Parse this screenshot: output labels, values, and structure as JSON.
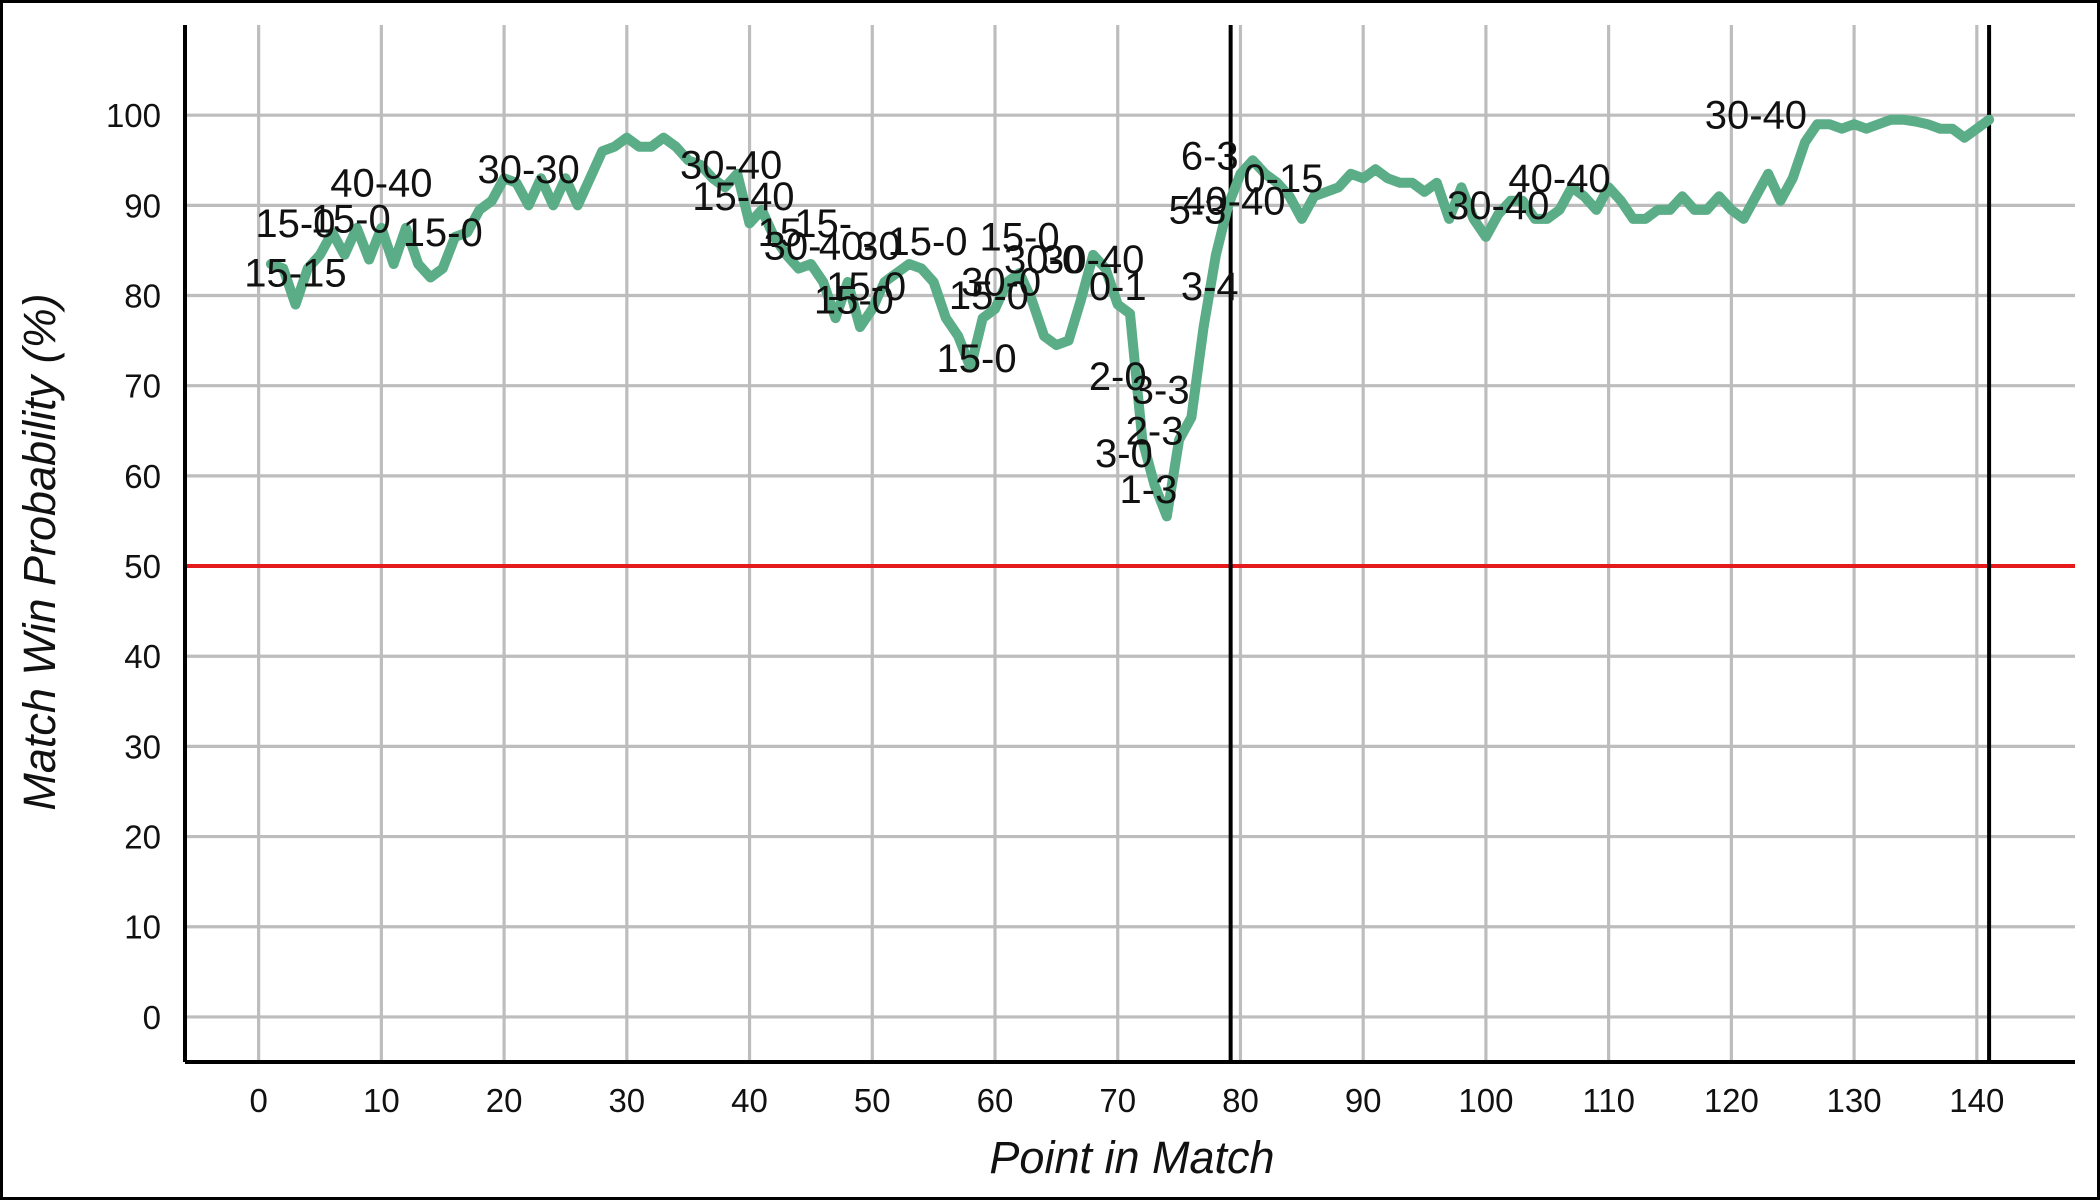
{
  "chart_data": {
    "type": "line",
    "title": "",
    "xlabel": "Point in Match",
    "ylabel": "Match Win Probability (%)",
    "xlim": [
      -6,
      148
    ],
    "ylim": [
      -5,
      110
    ],
    "xticks": [
      0,
      10,
      20,
      30,
      40,
      50,
      60,
      70,
      80,
      90,
      100,
      110,
      120,
      130,
      140
    ],
    "yticks": [
      0,
      10,
      20,
      30,
      40,
      50,
      60,
      70,
      80,
      90,
      100
    ],
    "grid": true,
    "legend": "none",
    "colors": {
      "series": "#5aad86",
      "reference": "#e41a1c",
      "set_boundary": "#000000"
    },
    "reference_line": {
      "y": 50
    },
    "set_boundaries": [
      79.2,
      141
    ],
    "series": [
      {
        "x": [
          1,
          2,
          3,
          4,
          5,
          6,
          7,
          8,
          9,
          10,
          11,
          12,
          13,
          14,
          15,
          16,
          17,
          18,
          19,
          20,
          21,
          22,
          23,
          24,
          25,
          26,
          27,
          28,
          29,
          30,
          31,
          32,
          33,
          34,
          35,
          36,
          37,
          38,
          39,
          40,
          41,
          42,
          43,
          44,
          45,
          46,
          47,
          48,
          49,
          50,
          51,
          52,
          53,
          54,
          55,
          56,
          57,
          58,
          59,
          60,
          61,
          62,
          63,
          64,
          65,
          66,
          67,
          68,
          69,
          70,
          71,
          72,
          73,
          74,
          75,
          76,
          77,
          78,
          79,
          80,
          81,
          82,
          83,
          84,
          85,
          86,
          87,
          88,
          89,
          90,
          91,
          92,
          93,
          94,
          95,
          96,
          97,
          98,
          99,
          100,
          101,
          102,
          103,
          104,
          105,
          106,
          107,
          108,
          109,
          110,
          111,
          112,
          113,
          114,
          115,
          116,
          117,
          118,
          119,
          120,
          121,
          122,
          123,
          124,
          125,
          126,
          127,
          128,
          129,
          130,
          131,
          132,
          133,
          134,
          135,
          136,
          137,
          138,
          139,
          140,
          141
        ],
        "values": [
          83.5,
          83,
          79,
          83,
          84.5,
          87,
          84.5,
          87.5,
          84,
          87.5,
          83.5,
          87.5,
          83.5,
          82,
          83,
          86.5,
          87,
          89.5,
          90.5,
          93,
          92.5,
          90,
          93,
          90,
          93,
          90,
          93,
          96,
          96.5,
          97.5,
          96.5,
          96.5,
          97.5,
          96.5,
          95,
          94.5,
          93,
          92,
          93.5,
          88,
          89.5,
          86.5,
          84.5,
          83,
          83.5,
          81.5,
          77.5,
          81.5,
          76.5,
          78.5,
          81.5,
          82.5,
          83.5,
          83,
          81.5,
          77.5,
          75.5,
          72,
          77.5,
          78.5,
          81.5,
          82.5,
          79.5,
          75.5,
          74.5,
          75,
          79.5,
          84.5,
          83,
          79,
          78,
          64,
          59,
          55.5,
          64,
          66.5,
          76.5,
          84.5,
          90,
          93.5,
          95,
          93.5,
          92.5,
          91,
          88.5,
          91,
          91.5,
          92,
          93.5,
          93,
          94,
          93,
          92.5,
          92.5,
          91.5,
          92.5,
          88.5,
          92,
          88.5,
          86.5,
          89,
          90.5,
          90.5,
          88.5,
          88.5,
          89.5,
          92,
          91,
          89.5,
          92,
          90.5,
          88.5,
          88.5,
          89.5,
          89.5,
          91,
          89.5,
          89.5,
          91,
          89.5,
          88.5,
          91,
          93.5,
          90.5,
          93,
          97,
          99,
          99,
          98.5,
          99,
          98.5,
          99,
          99.5,
          99.5,
          99.3,
          99,
          98.5,
          98.5,
          97.5,
          98.5,
          99.5
        ]
      }
    ],
    "annotations": [
      {
        "text": "15-15",
        "x": 3,
        "y": 81
      },
      {
        "text": "15-0",
        "x": 3,
        "y": 86.5
      },
      {
        "text": "15-0",
        "x": 7.5,
        "y": 87
      },
      {
        "text": "40-40",
        "x": 10,
        "y": 91
      },
      {
        "text": "15-0",
        "x": 15,
        "y": 85.5
      },
      {
        "text": "30-30",
        "x": 22,
        "y": 92.5
      },
      {
        "text": "30-40",
        "x": 38.5,
        "y": 93
      },
      {
        "text": "15-40",
        "x": 39.5,
        "y": 89.5
      },
      {
        "text": "15-",
        "x": 46,
        "y": 86.5
      },
      {
        "text": "15-",
        "x": 43,
        "y": 85.5
      },
      {
        "text": "30-",
        "x": 43.5,
        "y": 84
      },
      {
        "text": "40-",
        "x": 48,
        "y": 84
      },
      {
        "text": "30",
        "x": 50.5,
        "y": 84
      },
      {
        "text": "15-0",
        "x": 54.5,
        "y": 84.5
      },
      {
        "text": "15-0",
        "x": 62,
        "y": 85
      },
      {
        "text": "30-0",
        "x": 64,
        "y": 82.5
      },
      {
        "text": "40-40",
        "x": 79.5,
        "y": 89
      },
      {
        "text": "30-40",
        "x": 68,
        "y": 82.5
      },
      {
        "text": "15-0",
        "x": 49.5,
        "y": 79.5
      },
      {
        "text": "15-0",
        "x": 48.5,
        "y": 78
      },
      {
        "text": "30-0",
        "x": 60.5,
        "y": 80
      },
      {
        "text": "15-0",
        "x": 59.5,
        "y": 78.5
      },
      {
        "text": "0-1",
        "x": 70,
        "y": 79.5
      },
      {
        "text": "3-4",
        "x": 77.5,
        "y": 79.5
      },
      {
        "text": "15-0",
        "x": 58.5,
        "y": 71.5
      },
      {
        "text": "2-0",
        "x": 70,
        "y": 69.5
      },
      {
        "text": "3-3",
        "x": 73.5,
        "y": 68
      },
      {
        "text": "2-3",
        "x": 73,
        "y": 63.5
      },
      {
        "text": "3-0",
        "x": 70.5,
        "y": 61
      },
      {
        "text": "1-3",
        "x": 72.5,
        "y": 57
      },
      {
        "text": "6-3",
        "x": 77.5,
        "y": 94
      },
      {
        "text": "5-3",
        "x": 76.5,
        "y": 88
      },
      {
        "text": "0-15",
        "x": 83.5,
        "y": 91.5
      },
      {
        "text": "40-40",
        "x": 106,
        "y": 91.5
      },
      {
        "text": "30-40",
        "x": 101,
        "y": 88.5
      },
      {
        "text": "30-40",
        "x": 122,
        "y": 98.5
      }
    ]
  }
}
